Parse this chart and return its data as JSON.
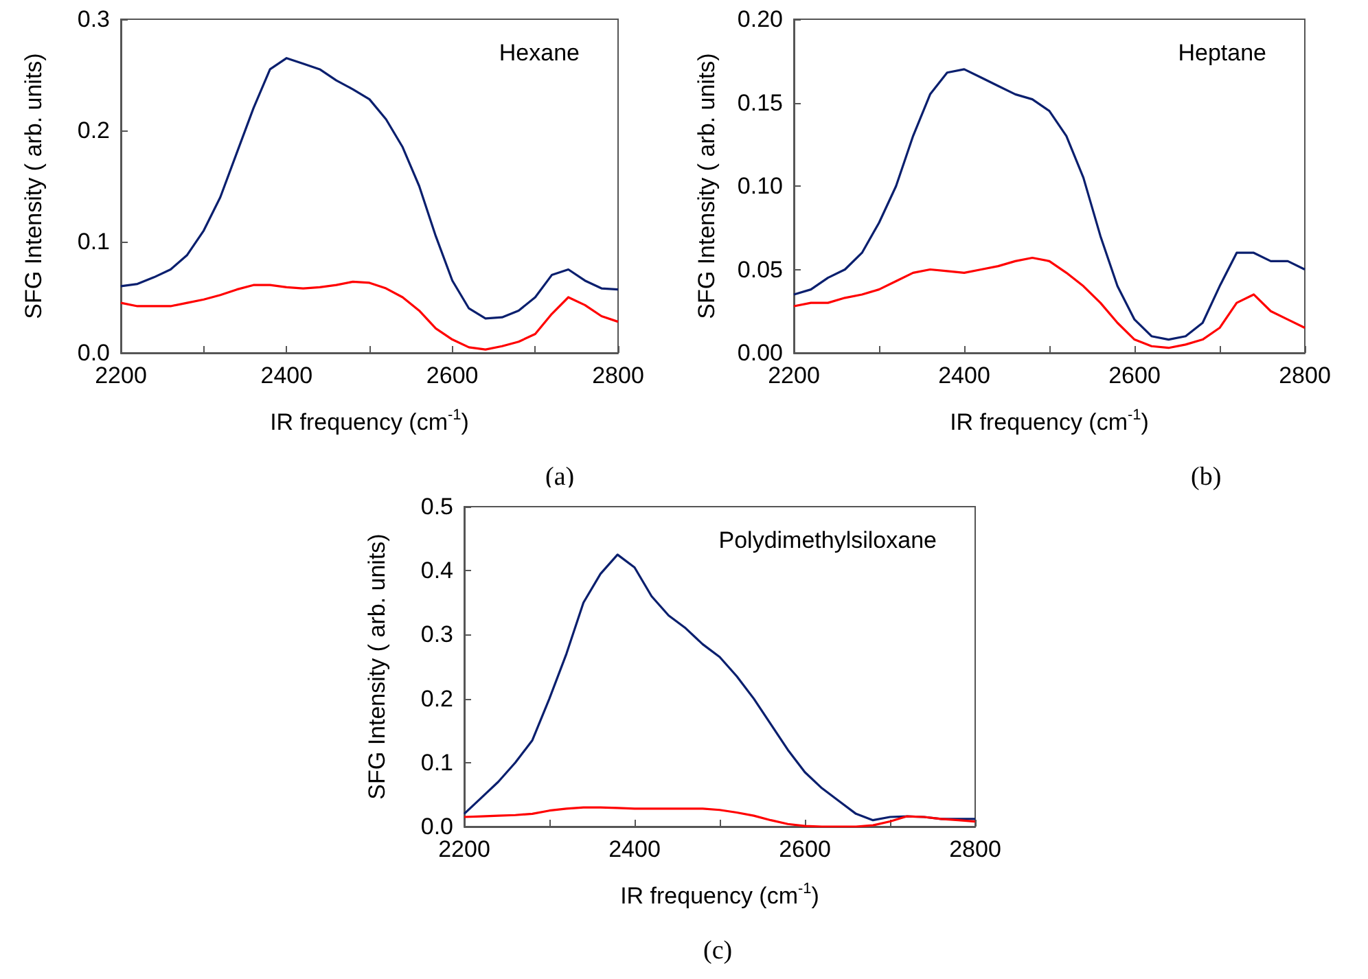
{
  "chart_data": [
    {
      "type": "line",
      "xlabel": "IR frequency (cm$^{-1}$)",
      "ylabel": "SFG Intensity ( arb. units)",
      "annotations": [
        "Hexane",
        "(a)"
      ],
      "xlim": [
        2200,
        2800
      ],
      "xticks": [
        2200,
        {
          "value": 2300,
          "label": null
        },
        2400,
        {
          "value": 2500,
          "label": null
        },
        2600,
        {
          "value": 2700,
          "label": null
        },
        2800
      ],
      "ylim": [
        0,
        0.3
      ],
      "yticks": [
        {
          "value": 0,
          "label": "0.0"
        },
        0.1,
        0.2,
        0.3
      ],
      "grid": false,
      "marker": "none",
      "line_style": "solid",
      "x": [
        2200,
        2220,
        2240,
        2260,
        2280,
        2300,
        2320,
        2340,
        2360,
        2380,
        2400,
        2420,
        2440,
        2460,
        2480,
        2500,
        2520,
        2540,
        2560,
        2580,
        2600,
        2620,
        2640,
        2660,
        2680,
        2700,
        2720,
        2740,
        2760,
        2780,
        2800
      ],
      "series": [
        {
          "color": "#0a1f6e",
          "values": [
            0.06,
            0.062,
            0.068,
            0.075,
            0.088,
            0.11,
            0.14,
            0.18,
            0.22,
            0.255,
            0.265,
            0.26,
            0.255,
            0.245,
            0.237,
            0.228,
            0.21,
            0.185,
            0.15,
            0.105,
            0.065,
            0.04,
            0.031,
            0.032,
            0.038,
            0.05,
            0.07,
            0.075,
            0.065,
            0.058,
            0.057
          ]
        },
        {
          "color": "#ff0000",
          "values": [
            0.045,
            0.042,
            0.042,
            0.042,
            0.045,
            0.048,
            0.052,
            0.057,
            0.061,
            0.061,
            0.059,
            0.058,
            0.059,
            0.061,
            0.064,
            0.063,
            0.058,
            0.05,
            0.038,
            0.022,
            0.012,
            0.005,
            0.003,
            0.006,
            0.01,
            0.017,
            0.035,
            0.05,
            0.043,
            0.033,
            0.028
          ]
        }
      ]
    },
    {
      "type": "line",
      "xlabel": "IR frequency (cm$^{-1}$)",
      "ylabel": "SFG Intensity ( arb. units)",
      "annotations": [
        "Heptane",
        "(b)"
      ],
      "xlim": [
        2200,
        2800
      ],
      "xticks": [
        2200,
        {
          "value": 2300,
          "label": null
        },
        2400,
        {
          "value": 2500,
          "label": null
        },
        2600,
        {
          "value": 2700,
          "label": null
        },
        2800
      ],
      "ylim": [
        0,
        0.2
      ],
      "yticks": [
        {
          "value": 0,
          "label": "0.00"
        },
        0.05,
        {
          "value": 0.1,
          "label": "0.10"
        },
        0.15,
        {
          "value": 0.2,
          "label": "0.20"
        }
      ],
      "grid": false,
      "marker": "none",
      "line_style": "solid",
      "x": [
        2200,
        2220,
        2240,
        2260,
        2280,
        2300,
        2320,
        2340,
        2360,
        2380,
        2400,
        2420,
        2440,
        2460,
        2480,
        2500,
        2520,
        2540,
        2560,
        2580,
        2600,
        2620,
        2640,
        2660,
        2680,
        2700,
        2720,
        2740,
        2760,
        2780,
        2800
      ],
      "series": [
        {
          "color": "#0a1f6e",
          "values": [
            0.035,
            0.038,
            0.045,
            0.05,
            0.06,
            0.078,
            0.1,
            0.13,
            0.155,
            0.168,
            0.17,
            0.165,
            0.16,
            0.155,
            0.152,
            0.145,
            0.13,
            0.105,
            0.07,
            0.04,
            0.02,
            0.01,
            0.008,
            0.01,
            0.018,
            0.04,
            0.06,
            0.06,
            0.055,
            0.055,
            0.05
          ]
        },
        {
          "color": "#ff0000",
          "values": [
            0.028,
            0.03,
            0.03,
            0.033,
            0.035,
            0.038,
            0.043,
            0.048,
            0.05,
            0.049,
            0.048,
            0.05,
            0.052,
            0.055,
            0.057,
            0.055,
            0.048,
            0.04,
            0.03,
            0.018,
            0.008,
            0.004,
            0.003,
            0.005,
            0.008,
            0.015,
            0.03,
            0.035,
            0.025,
            0.02,
            0.015
          ]
        }
      ]
    },
    {
      "type": "line",
      "xlabel": "IR frequency (cm$^{-1}$)",
      "ylabel": "SFG Intensity ( arb. units)",
      "annotations": [
        "Polydimethylsiloxane",
        "(c)"
      ],
      "xlim": [
        2200,
        2800
      ],
      "xticks": [
        2200,
        {
          "value": 2300,
          "label": null
        },
        2400,
        {
          "value": 2500,
          "label": null
        },
        2600,
        {
          "value": 2700,
          "label": null
        },
        2800
      ],
      "ylim": [
        0,
        0.5
      ],
      "yticks": [
        {
          "value": 0,
          "label": "0.0"
        },
        0.1,
        0.2,
        0.3,
        0.4,
        0.5
      ],
      "grid": false,
      "marker": "none",
      "line_style": "solid",
      "x": [
        2200,
        2220,
        2240,
        2260,
        2280,
        2300,
        2320,
        2340,
        2360,
        2380,
        2400,
        2420,
        2440,
        2460,
        2480,
        2500,
        2520,
        2540,
        2560,
        2580,
        2600,
        2620,
        2640,
        2660,
        2680,
        2700,
        2720,
        2740,
        2760,
        2780,
        2800
      ],
      "series": [
        {
          "color": "#0a1f6e",
          "values": [
            0.02,
            0.045,
            0.07,
            0.1,
            0.135,
            0.2,
            0.27,
            0.35,
            0.395,
            0.425,
            0.405,
            0.36,
            0.33,
            0.31,
            0.285,
            0.265,
            0.235,
            0.2,
            0.16,
            0.12,
            0.085,
            0.06,
            0.04,
            0.02,
            0.01,
            0.015,
            0.016,
            0.015,
            0.012,
            0.012,
            0.012
          ]
        },
        {
          "color": "#ff0000",
          "values": [
            0.015,
            0.016,
            0.017,
            0.018,
            0.02,
            0.025,
            0.028,
            0.03,
            0.03,
            0.029,
            0.028,
            0.028,
            0.028,
            0.028,
            0.028,
            0.026,
            0.022,
            0.017,
            0.01,
            0.004,
            0.001,
            0,
            0,
            0,
            0.002,
            0.008,
            0.016,
            0.015,
            0.012,
            0.01,
            0.008
          ]
        }
      ]
    }
  ]
}
